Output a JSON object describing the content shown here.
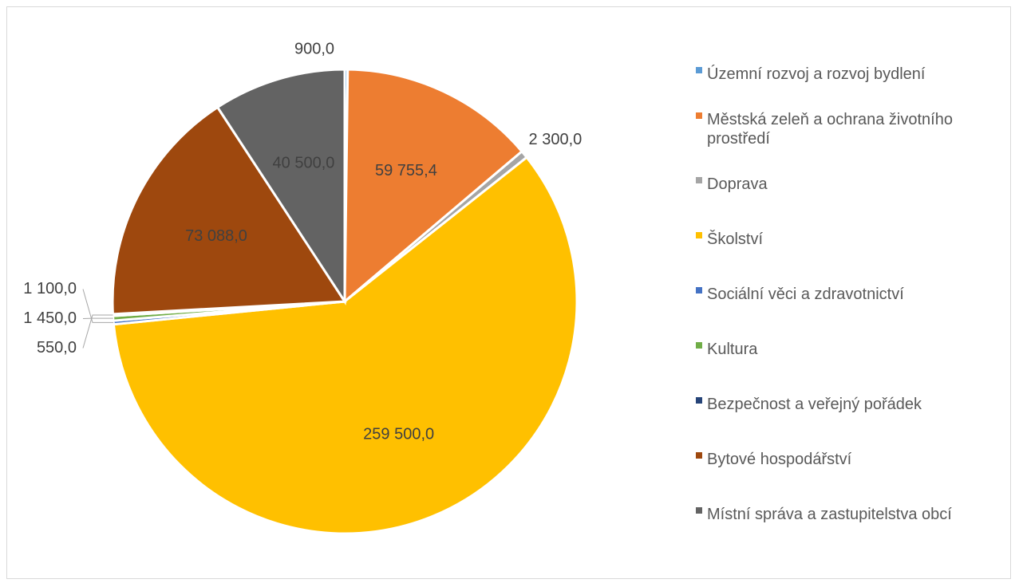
{
  "chart_data": {
    "type": "pie",
    "categories": [
      "Územní rozvoj a rozvoj bydlení",
      "Městská zeleň a ochrana životního prostředí",
      "Doprava",
      "Školství",
      "Sociální věci a zdravotnictví",
      "Kultura",
      "Bezpečnost a veřejný pořádek",
      "Bytové hospodářství",
      "Místní správa a zastupitelstva obcí"
    ],
    "values": [
      900,
      59755.4,
      2300,
      259500,
      1100,
      1450,
      550,
      73088,
      40500
    ],
    "value_labels": [
      "900,0",
      "59 755,4",
      "2 300,0",
      "259 500,0",
      "1 100,0",
      "1 450,0",
      "550,0",
      "73 088,0",
      "40 500,0"
    ],
    "colors": [
      "#5b9bd5",
      "#ed7d31",
      "#a5a5a5",
      "#ffc000",
      "#4472c4",
      "#70ad47",
      "#264478",
      "#9e480e",
      "#636363"
    ],
    "legend": "right"
  }
}
